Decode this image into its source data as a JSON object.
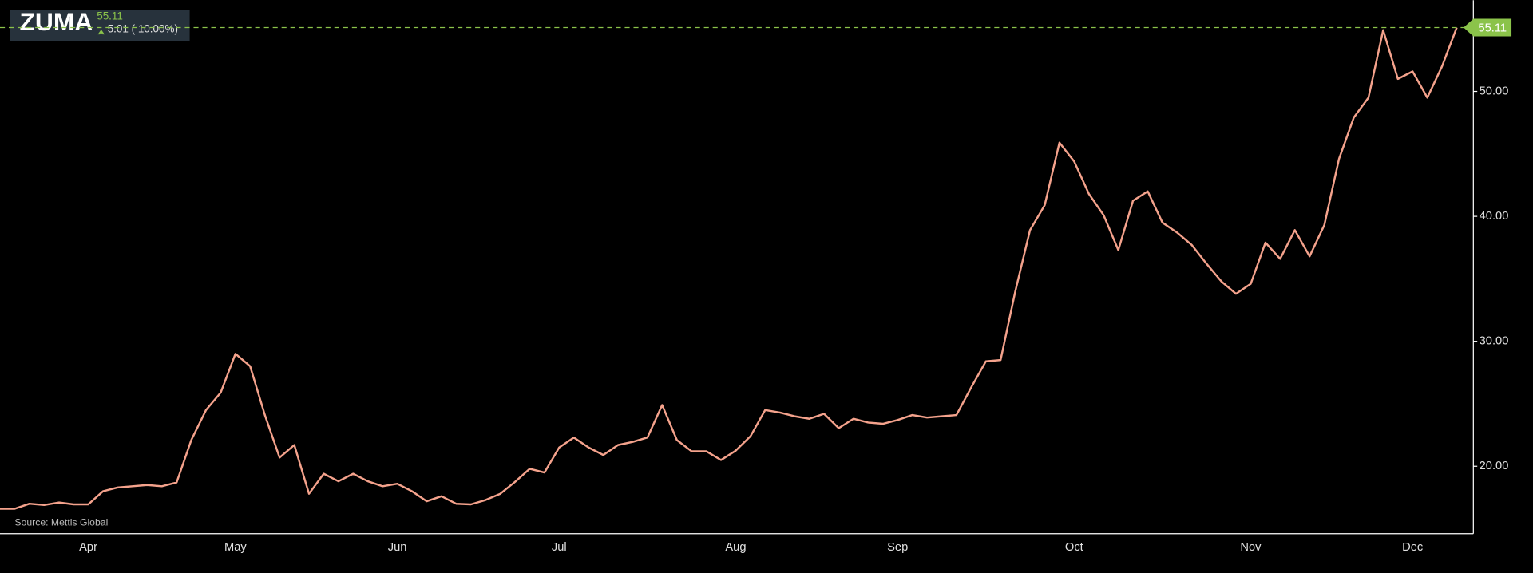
{
  "header": {
    "symbol": "ZUMA",
    "change": "5.01 ( 10.00%)"
  },
  "source": "Source: Mettis Global",
  "chart_data": {
    "type": "line",
    "categories": [
      null,
      null,
      null,
      null,
      null,
      null,
      "Apr",
      null,
      null,
      null,
      null,
      null,
      null,
      null,
      null,
      null,
      "May",
      null,
      null,
      null,
      null,
      null,
      null,
      null,
      null,
      null,
      null,
      "Jun",
      null,
      null,
      null,
      null,
      null,
      null,
      null,
      null,
      null,
      null,
      "Jul",
      null,
      null,
      null,
      null,
      null,
      null,
      null,
      null,
      null,
      null,
      null,
      "Aug",
      null,
      null,
      null,
      null,
      null,
      null,
      null,
      null,
      null,
      null,
      "Sep",
      null,
      null,
      null,
      null,
      null,
      null,
      null,
      null,
      null,
      null,
      null,
      "Oct",
      null,
      null,
      null,
      null,
      null,
      null,
      null,
      null,
      null,
      null,
      null,
      "Nov",
      null,
      null,
      null,
      null,
      null,
      null,
      null,
      null,
      null,
      null,
      "Dec",
      null,
      null,
      null
    ],
    "series": [
      {
        "color": "#f4a28c",
        "values": [
          16.6,
          16.6,
          17.0,
          16.9,
          17.1,
          16.95,
          16.95,
          18.0,
          18.3,
          18.4,
          18.5,
          18.4,
          18.7,
          22.1,
          24.5,
          25.9,
          29.0,
          28.0,
          24.1,
          20.7,
          21.7,
          17.8,
          19.4,
          18.8,
          19.4,
          18.8,
          18.4,
          18.6,
          18.0,
          17.2,
          17.6,
          17.0,
          16.95,
          17.3,
          17.8,
          18.75,
          19.8,
          19.5,
          21.5,
          22.3,
          21.5,
          20.9,
          21.7,
          21.95,
          22.3,
          24.9,
          22.1,
          21.2,
          21.2,
          20.5,
          21.25,
          22.4,
          24.5,
          24.3,
          24.0,
          23.8,
          24.2,
          23.05,
          23.8,
          23.5,
          23.4,
          23.7,
          24.1,
          23.9,
          24.0,
          24.1,
          26.3,
          28.4,
          28.5,
          34.0,
          38.9,
          40.9,
          45.9,
          44.4,
          41.8,
          40.1,
          37.3,
          41.25,
          42.0,
          39.5,
          38.7,
          37.7,
          36.2,
          34.8,
          33.8,
          34.6,
          37.9,
          36.6,
          38.9,
          36.8,
          39.3,
          44.6,
          47.9,
          49.5,
          54.9,
          51.0,
          51.6,
          49.5,
          52.0,
          55.11
        ]
      }
    ],
    "ylim": [
      14.6,
      57.3
    ],
    "yticks": [
      {
        "value": 20,
        "label": "20.00"
      },
      {
        "value": 30,
        "label": "30.00"
      },
      {
        "value": 40,
        "label": "40.00"
      },
      {
        "value": 50,
        "label": "50.00"
      }
    ],
    "last_price_color": "#8bc34a"
  }
}
